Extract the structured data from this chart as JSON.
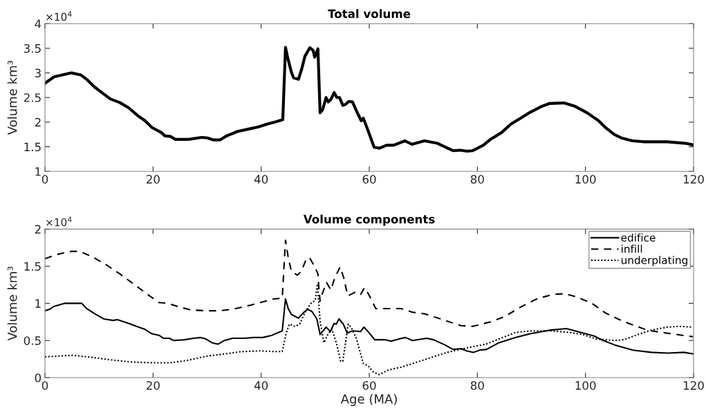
{
  "chart_data": [
    {
      "type": "line",
      "title": "Total volume",
      "ylabel": "Volume km³",
      "annotations": [
        "×10$^{4}$"
      ],
      "xlim": [
        0,
        120
      ],
      "xticks": [
        0,
        20,
        40,
        60,
        80,
        100,
        120
      ],
      "ylim": [
        1,
        4
      ],
      "yticks": [
        1,
        1.5,
        2,
        2.5,
        3,
        3.5,
        4
      ],
      "grid": false,
      "legend": false,
      "series": [
        {
          "color": "#000000",
          "line_style": "solid",
          "x": [
            0,
            1.7,
            4.9,
            6.6,
            7.7,
            9.2,
            10.4,
            12.1,
            13.8,
            15.5,
            17.3,
            18.5,
            19.8,
            21.5,
            22.2,
            23.2,
            24.1,
            26.6,
            29,
            30,
            31.1,
            32.4,
            33.6,
            35.6,
            37.7,
            39.4,
            41.1,
            42.8,
            44,
            44.5,
            44.9,
            45.6,
            46,
            46.9,
            47.5,
            48.1,
            49,
            49.6,
            49.9,
            50.5,
            50.9,
            51.4,
            52,
            52.4,
            52.9,
            53.5,
            54,
            54.5,
            55.1,
            55.6,
            56.2,
            56.9,
            57.7,
            58.5,
            58.9,
            59.8,
            60.9,
            61.9,
            63.2,
            64.5,
            66.6,
            67.9,
            70.2,
            72.6,
            74.3,
            75.5,
            76.8,
            78.1,
            79.1,
            81.1,
            82.3,
            84.5,
            86.2,
            88.3,
            89.6,
            91.7,
            93.4,
            96,
            98.1,
            100.3,
            102.4,
            103.6,
            105.3,
            106.6,
            108.7,
            110.9,
            115.1,
            118.5,
            119.8
          ],
          "values": [
            2.79,
            2.92,
            3.0,
            2.96,
            2.87,
            2.71,
            2.61,
            2.47,
            2.4,
            2.29,
            2.12,
            2.03,
            1.89,
            1.79,
            1.72,
            1.71,
            1.65,
            1.65,
            1.69,
            1.68,
            1.64,
            1.64,
            1.72,
            1.81,
            1.86,
            1.9,
            1.96,
            2.01,
            2.05,
            3.52,
            3.31,
            3.01,
            2.9,
            2.87,
            3.08,
            3.34,
            3.51,
            3.46,
            3.32,
            3.49,
            2.19,
            2.26,
            2.5,
            2.41,
            2.46,
            2.6,
            2.5,
            2.5,
            2.34,
            2.36,
            2.42,
            2.41,
            2.21,
            2.03,
            2.08,
            1.82,
            1.49,
            1.47,
            1.53,
            1.53,
            1.62,
            1.55,
            1.62,
            1.57,
            1.48,
            1.42,
            1.43,
            1.41,
            1.42,
            1.53,
            1.64,
            1.79,
            1.96,
            2.1,
            2.19,
            2.31,
            2.38,
            2.39,
            2.32,
            2.19,
            2.03,
            1.9,
            1.75,
            1.68,
            1.62,
            1.6,
            1.6,
            1.57,
            1.54
          ]
        }
      ]
    },
    {
      "type": "line",
      "title": "Volume components",
      "xlabel": "Age (MA)",
      "ylabel": "Volume km³",
      "annotations": [
        "×10$^{4}$"
      ],
      "xlim": [
        0,
        120
      ],
      "xticks": [
        0,
        20,
        40,
        60,
        80,
        100,
        120
      ],
      "ylim": [
        0,
        2
      ],
      "yticks": [
        0,
        0.5,
        1,
        1.5,
        2
      ],
      "grid": false,
      "legend": "top right",
      "series": [
        {
          "name": "edifice",
          "color": "#000000",
          "line_style": "solid",
          "x": [
            0,
            0.85,
            1.7,
            3.6,
            4.9,
            6.8,
            7.7,
            9.2,
            10.9,
            12.6,
            13.4,
            15.5,
            17.3,
            18.5,
            19.8,
            21.1,
            21.9,
            23,
            23.8,
            25.8,
            27.5,
            28.8,
            29.8,
            30.9,
            32,
            33.2,
            34.7,
            36.9,
            38.6,
            40.3,
            42,
            43.9,
            44.5,
            45,
            45.6,
            46.9,
            47.9,
            48.6,
            49.4,
            50.3,
            50.9,
            52,
            52.8,
            53.5,
            53.9,
            54.4,
            55.2,
            55.9,
            56.9,
            58.4,
            59,
            59.9,
            61,
            62.9,
            64,
            65.5,
            66.7,
            68,
            70.6,
            71.9,
            74,
            75.5,
            77,
            78,
            79.3,
            80.4,
            81.7,
            84,
            87,
            89.7,
            93.5,
            96.5,
            99,
            101.6,
            103.3,
            105.4,
            108.8,
            112.2,
            115.2,
            118.2,
            119.9
          ],
          "values": [
            0.9,
            0.92,
            0.96,
            1.0,
            1.0,
            1.0,
            0.93,
            0.86,
            0.79,
            0.77,
            0.78,
            0.73,
            0.68,
            0.65,
            0.59,
            0.57,
            0.53,
            0.53,
            0.5,
            0.51,
            0.53,
            0.54,
            0.52,
            0.47,
            0.45,
            0.5,
            0.53,
            0.53,
            0.54,
            0.54,
            0.57,
            0.63,
            1.06,
            0.93,
            0.85,
            0.8,
            0.88,
            0.92,
            0.89,
            0.79,
            0.58,
            0.68,
            0.62,
            0.73,
            0.72,
            0.79,
            0.72,
            0.6,
            0.63,
            0.62,
            0.68,
            0.61,
            0.51,
            0.51,
            0.49,
            0.52,
            0.54,
            0.5,
            0.53,
            0.51,
            0.44,
            0.38,
            0.39,
            0.36,
            0.34,
            0.37,
            0.38,
            0.47,
            0.54,
            0.59,
            0.64,
            0.66,
            0.61,
            0.56,
            0.5,
            0.44,
            0.37,
            0.34,
            0.33,
            0.34,
            0.32
          ]
        },
        {
          "name": "infill",
          "color": "#000000",
          "line_style": "dashed",
          "x": [
            0,
            2.3,
            4.9,
            6.4,
            8.7,
            11.3,
            13.8,
            16.4,
            19,
            21.1,
            22.8,
            24.9,
            27.1,
            30,
            32.2,
            34.7,
            37.7,
            40.3,
            42.4,
            43.9,
            44.5,
            45,
            45.6,
            46.7,
            47.4,
            48.2,
            48.9,
            49.7,
            50.5,
            50.6,
            50.9,
            51.4,
            52.1,
            52.9,
            53.6,
            54.6,
            55.3,
            56,
            57.4,
            58.4,
            59.1,
            59.9,
            61.2,
            65.9,
            68,
            70.2,
            73.6,
            77,
            79.1,
            82.4,
            85,
            88,
            91,
            93.9,
            96.1,
            98.2,
            101.2,
            103.7,
            106.3,
            108,
            111.4,
            114,
            116.9,
            119.9
          ],
          "values": [
            1.6,
            1.66,
            1.7,
            1.7,
            1.63,
            1.52,
            1.4,
            1.26,
            1.12,
            1.01,
            1.0,
            0.95,
            0.91,
            0.9,
            0.9,
            0.92,
            0.97,
            1.02,
            1.06,
            1.07,
            1.85,
            1.62,
            1.43,
            1.38,
            1.43,
            1.57,
            1.62,
            1.52,
            1.4,
            1.28,
            1.03,
            1.15,
            1.28,
            1.18,
            1.34,
            1.49,
            1.34,
            1.1,
            1.15,
            1.12,
            1.21,
            1.12,
            0.93,
            0.93,
            0.88,
            0.86,
            0.78,
            0.7,
            0.69,
            0.75,
            0.82,
            0.95,
            1.06,
            1.12,
            1.13,
            1.09,
            1.0,
            0.87,
            0.78,
            0.73,
            0.64,
            0.61,
            0.58,
            0.55
          ]
        },
        {
          "name": "underplating",
          "color": "#000000",
          "line_style": "dotted",
          "x": [
            0,
            4.9,
            7.9,
            12.1,
            16,
            19.8,
            23.2,
            26.2,
            30,
            33.4,
            36.4,
            39.8,
            42.4,
            43.9,
            44.6,
            45.2,
            46.3,
            47.1,
            48.2,
            49.2,
            50,
            50.4,
            50.9,
            51.6,
            52.4,
            53.1,
            53.9,
            54.7,
            55.1,
            56.1,
            56.7,
            57.6,
            58.9,
            59.8,
            60.8,
            61.9,
            63.4,
            65.9,
            70.2,
            74.4,
            78.7,
            81.6,
            84,
            87.1,
            90.1,
            93.5,
            96.9,
            99.5,
            102,
            105.4,
            107.1,
            109.7,
            112.2,
            115.2,
            117.3,
            119.9
          ],
          "values": [
            0.28,
            0.3,
            0.28,
            0.24,
            0.21,
            0.2,
            0.2,
            0.23,
            0.29,
            0.32,
            0.35,
            0.36,
            0.35,
            0.35,
            0.59,
            0.72,
            0.69,
            0.72,
            0.89,
            1.0,
            1.04,
            1.26,
            0.76,
            0.47,
            0.59,
            0.65,
            0.47,
            0.22,
            0.22,
            0.72,
            0.67,
            0.53,
            0.19,
            0.16,
            0.07,
            0.04,
            0.1,
            0.14,
            0.24,
            0.34,
            0.41,
            0.45,
            0.52,
            0.61,
            0.63,
            0.63,
            0.61,
            0.58,
            0.52,
            0.5,
            0.51,
            0.58,
            0.64,
            0.68,
            0.69,
            0.68
          ]
        }
      ]
    }
  ]
}
